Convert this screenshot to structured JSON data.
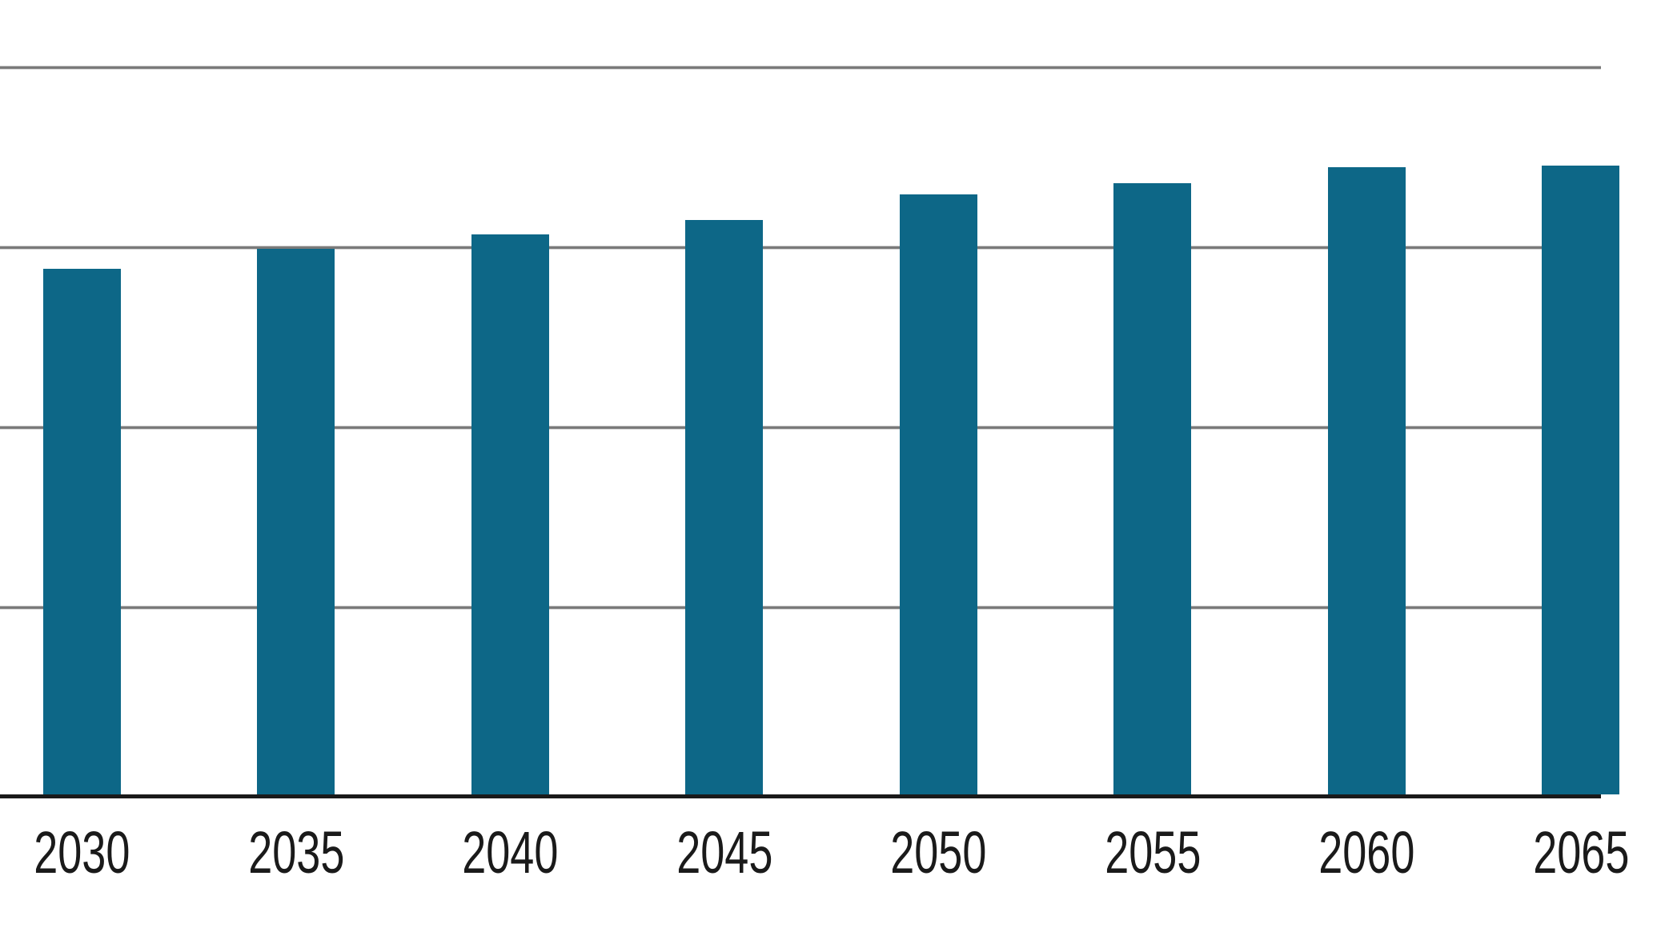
{
  "chart_data": {
    "type": "bar",
    "title": "",
    "xlabel": "",
    "ylabel": "",
    "categories": [
      "2030",
      "2035",
      "2040",
      "2045",
      "2050",
      "2055",
      "2060",
      "2065"
    ],
    "values": [
      2.89,
      3.0,
      3.08,
      3.16,
      3.3,
      3.36,
      3.45,
      3.46
    ],
    "value_units": "gridline-intervals (y-axis tick labels not visible in image; axis baseline = 0)",
    "ylim": [
      0,
      4.37
    ],
    "gridline_values": [
      1,
      2,
      3,
      4
    ],
    "grid": true,
    "legend": false,
    "last_category_clipped_at_right_edge": true,
    "colors": {
      "bar": "#0D6787",
      "gridline": "#7A7A7A",
      "axis": "#1A1A1A",
      "label": "#1A1A1A",
      "background": "#FFFFFF"
    }
  }
}
